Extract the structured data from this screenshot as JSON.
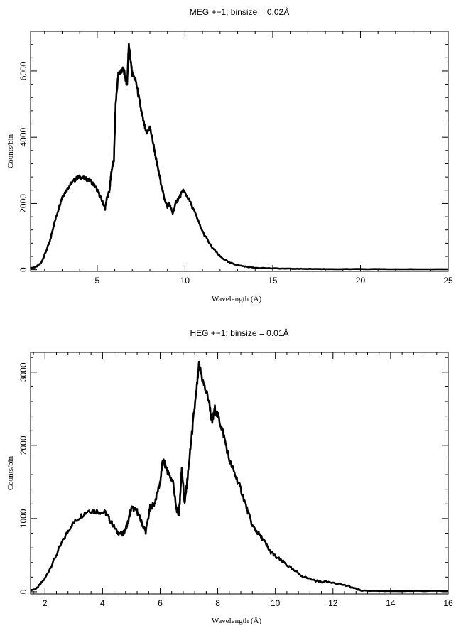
{
  "chart_data": [
    {
      "type": "line",
      "title": "MEG +−1; binsize = 0.02Å",
      "xlabel": "Wavelength (Å)",
      "ylabel": "Counts/bin",
      "xlim": [
        1.2,
        25
      ],
      "ylim": [
        -50,
        7200
      ],
      "xticks": [
        5,
        10,
        15,
        20,
        25
      ],
      "yticks": [
        0,
        2000,
        4000,
        6000
      ],
      "xtick_labels": [
        "5",
        "10",
        "15",
        "20",
        "25"
      ],
      "ytick_labels": [
        "0",
        "2000",
        "4000",
        "6000"
      ],
      "legend": false,
      "grid": false,
      "series": [
        {
          "color": "#000000",
          "x": [
            1.2,
            1.5,
            1.8,
            2.0,
            2.3,
            2.5,
            2.8,
            3.0,
            3.3,
            3.5,
            3.8,
            4.0,
            4.3,
            4.6,
            4.9,
            5.1,
            5.3,
            5.45,
            5.55,
            5.7,
            5.8,
            5.95,
            6.05,
            6.2,
            6.35,
            6.5,
            6.6,
            6.7,
            6.8,
            6.9,
            7.0,
            7.2,
            7.4,
            7.6,
            7.8,
            8.0,
            8.2,
            8.4,
            8.6,
            8.8,
            9.0,
            9.1,
            9.3,
            9.5,
            9.7,
            9.9,
            10.2,
            10.5,
            11.0,
            11.5,
            12.0,
            12.5,
            13.0,
            13.5,
            14.0,
            15.0,
            16.0,
            17.0,
            18.0,
            20.0,
            22.0,
            25.0
          ],
          "y": [
            50,
            80,
            200,
            450,
            850,
            1300,
            1850,
            2200,
            2450,
            2600,
            2750,
            2800,
            2750,
            2700,
            2500,
            2300,
            2050,
            1850,
            2150,
            2400,
            2950,
            3300,
            5000,
            5900,
            6000,
            6050,
            5800,
            5600,
            6850,
            6300,
            5900,
            5700,
            5100,
            4550,
            4100,
            4300,
            3800,
            3200,
            2700,
            2200,
            1900,
            2000,
            1700,
            2050,
            2200,
            2400,
            2150,
            1800,
            1150,
            700,
            400,
            220,
            140,
            90,
            60,
            40,
            30,
            25,
            20,
            18,
            15,
            15
          ]
        }
      ]
    },
    {
      "type": "line",
      "title": "HEG +−1; binsize = 0.01Å",
      "xlabel": "Wavelength (Å)",
      "ylabel": "Counts/bin",
      "xlim": [
        1.5,
        16
      ],
      "ylim": [
        -30,
        3270
      ],
      "xticks": [
        2,
        4,
        6,
        8,
        10,
        12,
        14,
        16
      ],
      "yticks": [
        0,
        1000,
        2000,
        3000
      ],
      "xtick_labels": [
        "2",
        "4",
        "6",
        "8",
        "10",
        "12",
        "14",
        "16"
      ],
      "ytick_labels": [
        "0",
        "1000",
        "2000",
        "3000"
      ],
      "legend": false,
      "grid": false,
      "series": [
        {
          "color": "#000000",
          "x": [
            1.5,
            1.7,
            2.0,
            2.3,
            2.6,
            2.9,
            3.2,
            3.5,
            3.8,
            4.1,
            4.3,
            4.5,
            4.7,
            4.85,
            5.0,
            5.2,
            5.35,
            5.5,
            5.65,
            5.8,
            6.0,
            6.1,
            6.2,
            6.3,
            6.45,
            6.55,
            6.65,
            6.7,
            6.75,
            6.85,
            6.95,
            7.05,
            7.15,
            7.25,
            7.35,
            7.5,
            7.7,
            7.8,
            7.9,
            8.05,
            8.2,
            8.4,
            8.6,
            8.8,
            9.0,
            9.2,
            9.4,
            9.6,
            9.8,
            10.0,
            10.3,
            10.6,
            11.0,
            11.5,
            12.0,
            12.5,
            12.8,
            13.0,
            14.0,
            15.0,
            16.0
          ],
          "y": [
            20,
            40,
            180,
            420,
            680,
            900,
            1020,
            1110,
            1100,
            1080,
            950,
            820,
            780,
            900,
            1150,
            1100,
            950,
            820,
            1150,
            1200,
            1500,
            1800,
            1700,
            1600,
            1500,
            1150,
            1050,
            1350,
            1700,
            1200,
            1550,
            1950,
            2350,
            2700,
            3100,
            2850,
            2600,
            2300,
            2500,
            2350,
            2150,
            1800,
            1600,
            1400,
            1150,
            900,
            800,
            700,
            560,
            480,
            400,
            300,
            200,
            140,
            130,
            80,
            40,
            15,
            10,
            10,
            10
          ]
        }
      ]
    }
  ]
}
